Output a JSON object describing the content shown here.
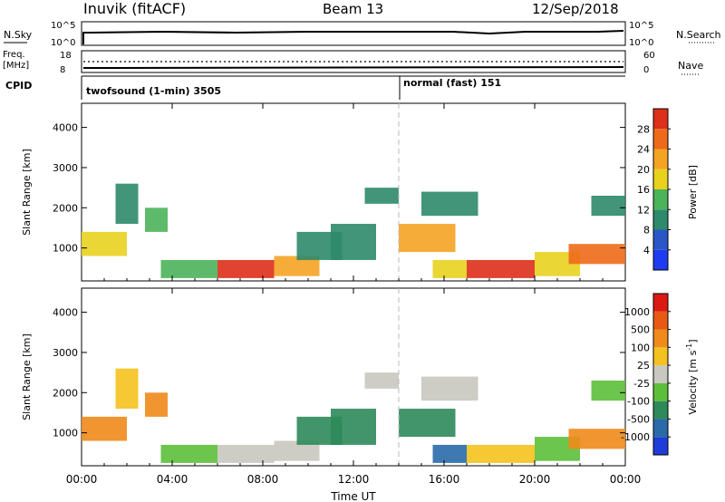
{
  "header": {
    "station": "Inuvik (fitACF)",
    "beam": "Beam 13",
    "date": "12/Sep/2018"
  },
  "strip_labels": {
    "nsky": "N.Sky",
    "nsearch": "N.Search",
    "freq_top": "Freq.",
    "freq_unit": "[MHz]",
    "cpid": "CPID",
    "nave": "Nave",
    "nsky_ticks": [
      "10^5",
      "10^0"
    ],
    "nsearch_ticks": [
      "10^5",
      "10^0"
    ],
    "freq_ticks": [
      "18",
      "8"
    ],
    "nave_ticks": [
      "60",
      "0"
    ]
  },
  "cpid_segments": [
    {
      "label": "twofsound (1-min) 3505",
      "start_hour": 0,
      "end_hour": 14.0
    },
    {
      "label": "normal (fast) 151",
      "start_hour": 14.0,
      "end_hour": 24
    }
  ],
  "x_axis": {
    "label": "Time UT",
    "range_hours": [
      0,
      24
    ],
    "ticks": [
      "00:00",
      "04:00",
      "08:00",
      "12:00",
      "16:00",
      "20:00",
      "00:00"
    ]
  },
  "chart_data": [
    {
      "type": "heatmap",
      "title": "Power",
      "ylabel": "Slant Range [km]",
      "ylim": [
        180,
        4600
      ],
      "yticks": [
        "1000",
        "2000",
        "3000",
        "4000"
      ],
      "colorbar_label": "Power [dB]",
      "colorbar_ticks": [
        "4",
        "8",
        "12",
        "16",
        "20",
        "24",
        "28"
      ],
      "colorbar_colors": [
        "#1f3bf0",
        "#2a56c8",
        "#2e8a6a",
        "#4bb35a",
        "#e8d21e",
        "#f4a322",
        "#ee6a1a",
        "#dd2f1a"
      ],
      "colorbar_values": [
        0,
        4,
        8,
        12,
        16,
        20,
        24,
        28,
        32
      ],
      "series": [
        {
          "t": [
            0.0,
            2.0
          ],
          "r": [
            800,
            1400
          ],
          "v": 18
        },
        {
          "t": [
            1.5,
            2.5
          ],
          "r": [
            1600,
            2600
          ],
          "v": 8
        },
        {
          "t": [
            2.8,
            3.8
          ],
          "r": [
            1400,
            2000
          ],
          "v": 12
        },
        {
          "t": [
            3.5,
            6.0
          ],
          "r": [
            250,
            700
          ],
          "v": 14
        },
        {
          "t": [
            6.0,
            8.5
          ],
          "r": [
            250,
            700
          ],
          "v": 28
        },
        {
          "t": [
            8.5,
            10.5
          ],
          "r": [
            300,
            800
          ],
          "v": 20
        },
        {
          "t": [
            9.5,
            11.5
          ],
          "r": [
            700,
            1400
          ],
          "v": 8
        },
        {
          "t": [
            11.0,
            13.0
          ],
          "r": [
            700,
            1600
          ],
          "v": 10
        },
        {
          "t": [
            12.5,
            14.0
          ],
          "r": [
            2100,
            2500
          ],
          "v": 8
        },
        {
          "t": [
            14.0,
            16.5
          ],
          "r": [
            900,
            1600
          ],
          "v": 20
        },
        {
          "t": [
            15.0,
            17.5
          ],
          "r": [
            1800,
            2400
          ],
          "v": 8
        },
        {
          "t": [
            15.5,
            17.0
          ],
          "r": [
            250,
            700
          ],
          "v": 16
        },
        {
          "t": [
            17.0,
            20.0
          ],
          "r": [
            250,
            700
          ],
          "v": 28
        },
        {
          "t": [
            20.0,
            22.0
          ],
          "r": [
            300,
            900
          ],
          "v": 16
        },
        {
          "t": [
            21.5,
            24.0
          ],
          "r": [
            600,
            1100
          ],
          "v": 24
        },
        {
          "t": [
            22.5,
            24.0
          ],
          "r": [
            1800,
            2300
          ],
          "v": 8
        }
      ]
    },
    {
      "type": "heatmap",
      "title": "Velocity",
      "ylabel": "Slant Range [km]",
      "ylim": [
        180,
        4600
      ],
      "yticks": [
        "1000",
        "2000",
        "3000",
        "4000"
      ],
      "colorbar_label": "Velocity [m s^-1]",
      "colorbar_ticks": [
        "1000",
        "500",
        "100",
        "25",
        "-25",
        "-100",
        "-500",
        "-1000"
      ],
      "colorbar_colors": [
        "#1f3bd8",
        "#2a6aa8",
        "#2e8a5a",
        "#5cbf3a",
        "#c8c8c0",
        "#f4c21e",
        "#f08a1a",
        "#e85a14",
        "#dc1a14"
      ],
      "series": [
        {
          "t": [
            0.0,
            2.0
          ],
          "r": [
            800,
            1400
          ],
          "v": -300
        },
        {
          "t": [
            1.5,
            2.5
          ],
          "r": [
            1600,
            2600
          ],
          "v": -60
        },
        {
          "t": [
            2.8,
            3.8
          ],
          "r": [
            1400,
            2000
          ],
          "v": -200
        },
        {
          "t": [
            3.5,
            6.0
          ],
          "r": [
            250,
            700
          ],
          "v": 50
        },
        {
          "t": [
            6.0,
            8.5
          ],
          "r": [
            250,
            700
          ],
          "v": 0
        },
        {
          "t": [
            8.5,
            10.5
          ],
          "r": [
            300,
            800
          ],
          "v": 0
        },
        {
          "t": [
            9.5,
            11.5
          ],
          "r": [
            700,
            1400
          ],
          "v": 200
        },
        {
          "t": [
            11.0,
            13.0
          ],
          "r": [
            700,
            1600
          ],
          "v": 300
        },
        {
          "t": [
            12.5,
            14.0
          ],
          "r": [
            2100,
            2500
          ],
          "v": 0
        },
        {
          "t": [
            14.0,
            16.5
          ],
          "r": [
            900,
            1600
          ],
          "v": 200
        },
        {
          "t": [
            15.0,
            17.5
          ],
          "r": [
            1800,
            2400
          ],
          "v": 0
        },
        {
          "t": [
            15.5,
            17.0
          ],
          "r": [
            250,
            700
          ],
          "v": 700
        },
        {
          "t": [
            17.0,
            20.0
          ],
          "r": [
            250,
            700
          ],
          "v": -60
        },
        {
          "t": [
            20.0,
            22.0
          ],
          "r": [
            300,
            900
          ],
          "v": 60
        },
        {
          "t": [
            21.5,
            24.0
          ],
          "r": [
            600,
            1100
          ],
          "v": -300
        },
        {
          "t": [
            22.5,
            24.0
          ],
          "r": [
            1800,
            2300
          ],
          "v": 60
        }
      ]
    }
  ]
}
